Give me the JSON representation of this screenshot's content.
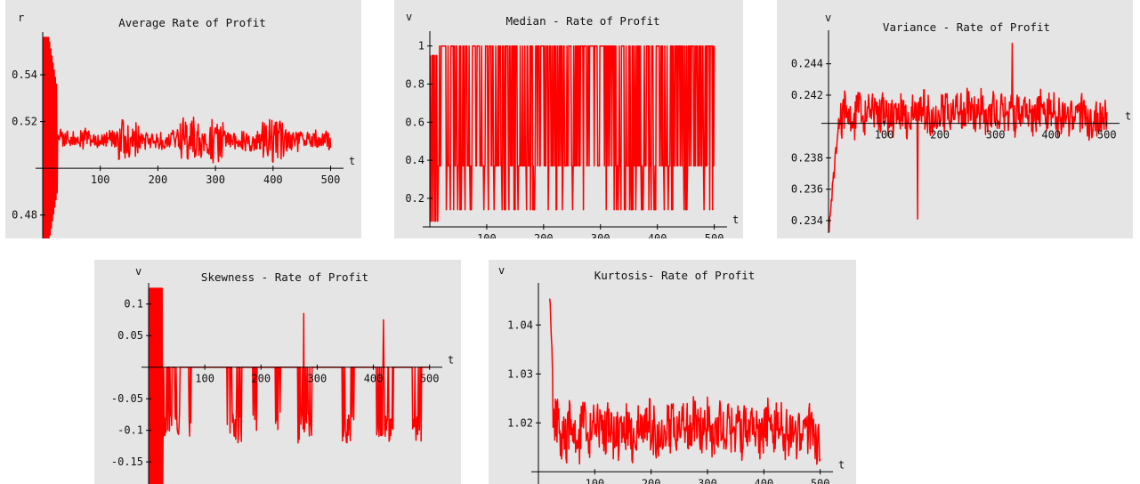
{
  "colors": {
    "panel_bg": "#e5e5e5",
    "series": "#ff0000",
    "axis": "#000000"
  },
  "chart_data": [
    {
      "id": "avg",
      "type": "line",
      "title": "Average Rate of Profit",
      "xlabel": "t",
      "ylabel": "r",
      "xlim": [
        0,
        510
      ],
      "ylim": [
        0.47,
        0.556
      ],
      "x_cross_y": 0.5,
      "xticks": [
        100,
        200,
        300,
        400,
        500
      ],
      "yticks": [
        0.48,
        0.52,
        0.54
      ],
      "series_desc": {
        "start": 1,
        "end": 500,
        "level": 0.512,
        "noise": 0.004,
        "early_amp": 0.06,
        "early_len": 25,
        "clip": [
          0.47,
          0.556
        ],
        "bursts": [
          [
            150,
            40
          ],
          [
            260,
            45
          ],
          [
            300,
            30
          ],
          [
            400,
            40
          ]
        ]
      }
    },
    {
      "id": "median",
      "type": "line",
      "title": "Median - Rate of Profit",
      "xlabel": "t",
      "ylabel": "v",
      "xlim": [
        0,
        510
      ],
      "ylim": [
        0.05,
        1.05
      ],
      "x_cross_y": 0.05,
      "xticks": [
        100,
        200,
        300,
        400,
        500
      ],
      "yticks": [
        0.2,
        0.4,
        0.6,
        0.8,
        1
      ],
      "values_set": [
        0.14,
        0.37,
        1.0
      ]
    },
    {
      "id": "variance",
      "type": "line",
      "title": "Variance - Rate of Profit",
      "xlabel": "t",
      "ylabel": "v",
      "xlim": [
        0,
        510
      ],
      "ylim": [
        0.2332,
        0.2458
      ],
      "x_cross_y": 0.2402,
      "xticks": [
        100,
        200,
        300,
        400,
        500
      ],
      "yticks": [
        0.234,
        0.236,
        0.238,
        0.242,
        0.244
      ],
      "series_desc": {
        "start": 1,
        "end": 500,
        "level": 0.2408,
        "noise": 0.0012,
        "rise_from": 0.2332,
        "rise_len": 20,
        "clip": [
          0.2332,
          0.2458
        ]
      }
    },
    {
      "id": "skewness",
      "type": "line",
      "title": "Skewness - Rate of Profit",
      "xlabel": "t",
      "ylabel": "v",
      "xlim": [
        0,
        510
      ],
      "ylim": [
        -0.185,
        0.125
      ],
      "x_cross_y": 0,
      "xticks": [
        100,
        200,
        300,
        400,
        500
      ],
      "yticks": [
        -0.15,
        -0.1,
        -0.05,
        0.05,
        0.1
      ]
    },
    {
      "id": "kurtosis",
      "type": "line",
      "title": "Kurtosis- Rate of Profit",
      "xlabel": "t",
      "ylabel": "v",
      "xlim": [
        0,
        510
      ],
      "ylim": [
        1.0075,
        1.0475
      ],
      "x_cross_y": 1.01,
      "xticks": [
        100,
        200,
        300,
        400,
        500
      ],
      "yticks": [
        1.02,
        1.03,
        1.04
      ],
      "series_desc": {
        "start": 20,
        "end": 500,
        "level": 1.0185,
        "noise": 0.005,
        "clip": [
          1.0075,
          1.0475
        ]
      }
    }
  ]
}
